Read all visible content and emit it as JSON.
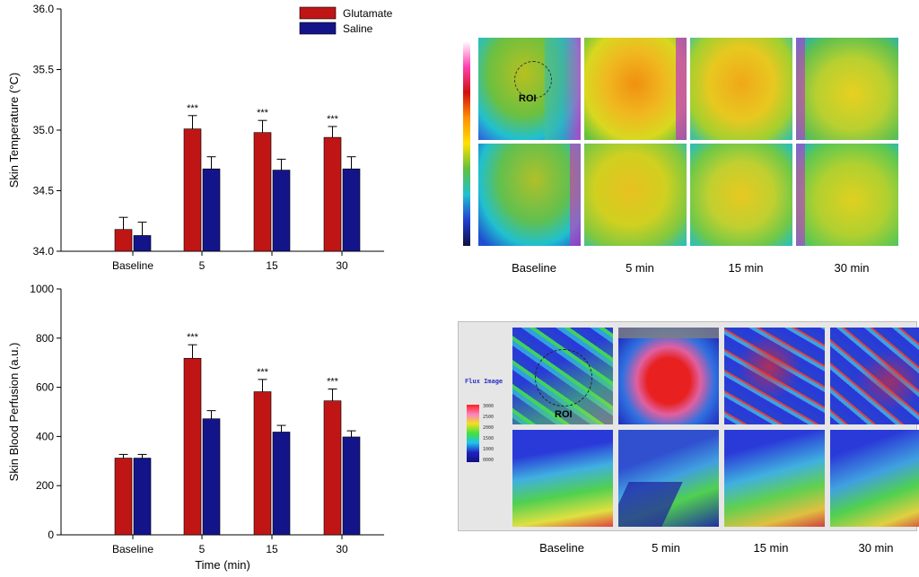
{
  "legend": {
    "entries": [
      {
        "name": "Glutamate",
        "color": "#C01515"
      },
      {
        "name": "Saline",
        "color": "#14148A"
      }
    ]
  },
  "chart_data": [
    {
      "type": "bar",
      "title": "",
      "xlabel": "",
      "ylabel": "Skin Temperature (°C)",
      "ylim": [
        34.0,
        36.0
      ],
      "yticks": [
        "34.0",
        "34.5",
        "35.0",
        "35.5",
        "36.0"
      ],
      "categories": [
        "Baseline",
        "5",
        "15",
        "30"
      ],
      "series": [
        {
          "name": "Glutamate",
          "values": [
            34.18,
            35.01,
            34.98,
            34.94
          ],
          "errors": [
            0.1,
            0.11,
            0.1,
            0.09
          ]
        },
        {
          "name": "Saline",
          "values": [
            34.13,
            34.68,
            34.67,
            34.68
          ],
          "errors": [
            0.11,
            0.1,
            0.09,
            0.1
          ]
        }
      ],
      "annotations": [
        "",
        "***",
        "***",
        "***"
      ]
    },
    {
      "type": "bar",
      "title": "",
      "xlabel": "Time (min)",
      "ylabel": "Skin Blood Perfusion (a.u.)",
      "ylim": [
        0,
        1000
      ],
      "yticks": [
        "0",
        "200",
        "400",
        "600",
        "800",
        "1000"
      ],
      "categories": [
        "Baseline",
        "5",
        "15",
        "30"
      ],
      "series": [
        {
          "name": "Glutamate",
          "values": [
            312,
            718,
            582,
            545
          ],
          "errors": [
            15,
            55,
            50,
            48
          ]
        },
        {
          "name": "Saline",
          "values": [
            312,
            472,
            418,
            398
          ],
          "errors": [
            15,
            33,
            27,
            25
          ]
        }
      ],
      "annotations": [
        "",
        "***",
        "***",
        "***"
      ]
    }
  ],
  "thermal_panel": {
    "roi_label": "ROI",
    "captions": [
      "Baseline",
      "5 min",
      "15 min",
      "30 min"
    ]
  },
  "perfusion_panel": {
    "flux_title": "Flux Image",
    "scale_ticks": [
      "3000",
      "2500",
      "2000",
      "1500",
      "1000",
      "0000"
    ],
    "roi_label": "ROI",
    "captions": [
      "Baseline",
      "5 min",
      "15 min",
      "30 min"
    ]
  }
}
